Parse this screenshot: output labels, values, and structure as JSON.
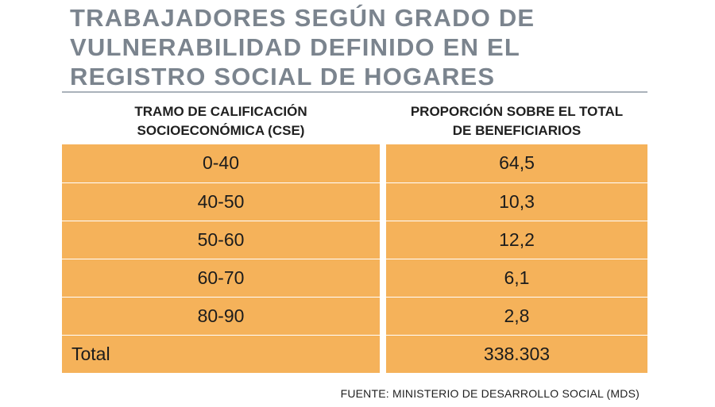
{
  "chart_data": {
    "type": "table",
    "title": "TRABAJADORES SEGÚN GRADO DE VULNERABILIDAD DEFINIDO EN EL REGISTRO SOCIAL DE HOGARES",
    "title_lines": [
      "TRABAJADORES SEGÚN GRADO DE",
      "VULNERABILIDAD DEFINIDO EN EL",
      "REGISTRO SOCIAL DE HOGARES"
    ],
    "columns": [
      {
        "lines": [
          "TRAMO DE CALIFICACIÓN",
          "SOCIOECONÓMICA (CSE)"
        ]
      },
      {
        "lines": [
          "PROPORCIÓN SOBRE EL TOTAL",
          "DE BENEFICIARIOS"
        ]
      }
    ],
    "rows": [
      {
        "tramo": "0-40",
        "proporcion": "64,5"
      },
      {
        "tramo": "40-50",
        "proporcion": "10,3"
      },
      {
        "tramo": "50-60",
        "proporcion": "12,2"
      },
      {
        "tramo": "60-70",
        "proporcion": "6,1"
      },
      {
        "tramo": "80-90",
        "proporcion": "2,8"
      },
      {
        "tramo": "Total",
        "proporcion": "338.303"
      }
    ],
    "source": "FUENTE: MINISTERIO DE DESARROLLO SOCIAL (MDS)",
    "colors": {
      "title": "#7b848e",
      "cell_fill": "#f5b25a",
      "separator": "#ffffff",
      "text": "#1c1c1c"
    }
  }
}
